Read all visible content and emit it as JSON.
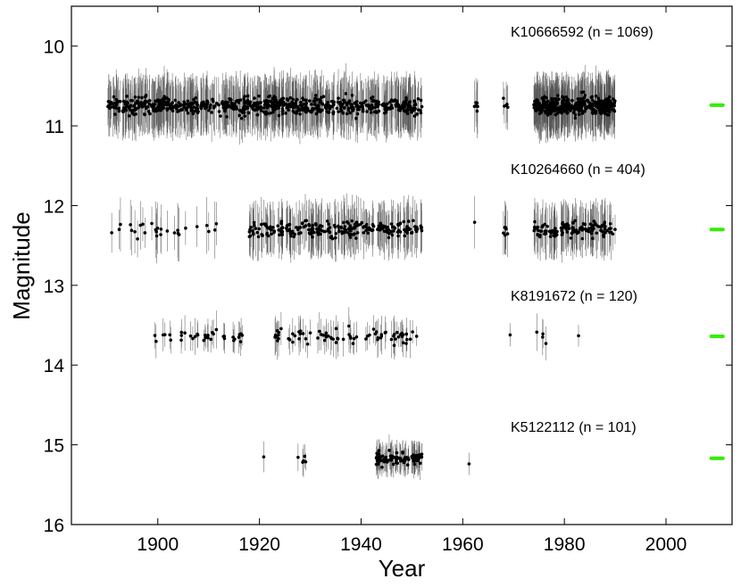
{
  "chart_data": {
    "type": "scatter",
    "title": "",
    "xlabel": "Year",
    "ylabel": "Magnitude",
    "xlim": [
      1883,
      2013
    ],
    "ylim": [
      16,
      9.5
    ],
    "y_inverted": true,
    "grid": false,
    "legend": "none",
    "x_ticks": [
      1900,
      1920,
      1940,
      1960,
      1980,
      2000
    ],
    "y_ticks": [
      10,
      11,
      12,
      13,
      14,
      15,
      16
    ],
    "point_color": "#000000",
    "errorbar_color": "#555555",
    "marker_color": "#33ee00",
    "series": [
      {
        "name": "K10666592 (n = 1069)",
        "base_mag": 10.75,
        "scatter": 0.11,
        "error": 0.32,
        "segments": [
          [
            1890,
            1952,
            700
          ],
          [
            1962,
            1963,
            6
          ],
          [
            1968,
            1969,
            5
          ],
          [
            1974,
            1990,
            358
          ]
        ],
        "marker_mag": 10.74
      },
      {
        "name": "K10264660 (n = 404)",
        "base_mag": 12.3,
        "scatter": 0.1,
        "error": 0.3,
        "segments": [
          [
            1890,
            1912,
            28
          ],
          [
            1918,
            1952,
            238
          ],
          [
            1962,
            1963,
            1
          ],
          [
            1968,
            1969,
            6
          ],
          [
            1974,
            1990,
            131
          ]
        ],
        "marker_mag": 12.3
      },
      {
        "name": "K8191672 (n = 120)",
        "base_mag": 13.64,
        "scatter": 0.09,
        "error": 0.2,
        "segments": [
          [
            1899,
            1917,
            36
          ],
          [
            1923,
            1952,
            78
          ],
          [
            1969,
            1970,
            1
          ],
          [
            1974,
            1977,
            4
          ],
          [
            1982,
            1983,
            1
          ]
        ],
        "marker_mag": 13.64
      },
      {
        "name": "K5122112 (n = 101)",
        "base_mag": 15.17,
        "scatter": 0.08,
        "error": 0.18,
        "segments": [
          [
            1920,
            1921,
            1
          ],
          [
            1927,
            1930,
            5
          ],
          [
            1943,
            1952,
            94
          ],
          [
            1961,
            1962,
            1
          ]
        ],
        "marker_mag": 15.17
      }
    ]
  }
}
